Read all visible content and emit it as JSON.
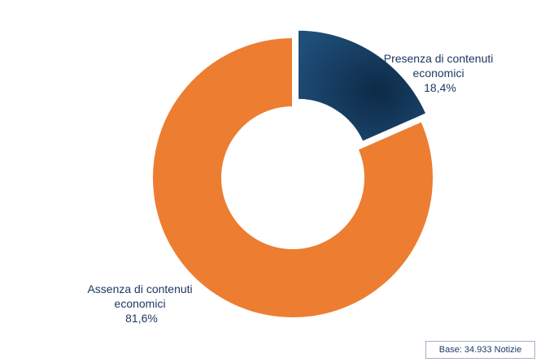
{
  "chart_data": {
    "type": "pie",
    "title": "",
    "slices": [
      {
        "label_lines": [
          "Presenza di contenuti",
          "economici"
        ],
        "value": 18.4,
        "value_label": "18,4%",
        "color": "#1f4e79",
        "exploded": true
      },
      {
        "label_lines": [
          "Assenza di contenuti",
          "economici"
        ],
        "value": 81.6,
        "value_label": "81,6%",
        "color": "#ed7d31",
        "exploded": false
      }
    ]
  },
  "footer": {
    "base_text": "Base: 34.933 Notizie"
  }
}
